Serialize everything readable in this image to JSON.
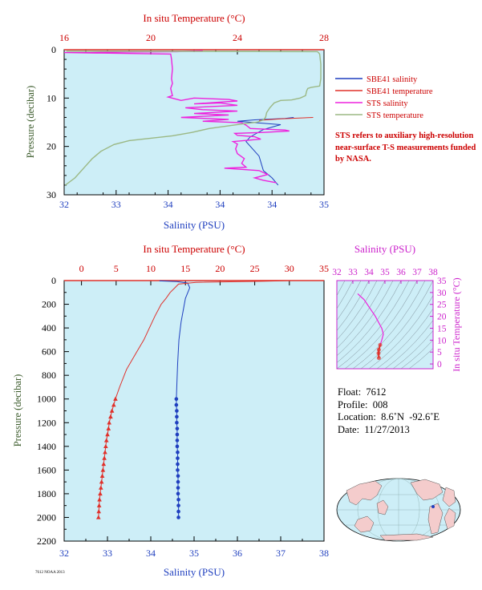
{
  "colors": {
    "plot_bg": "#cdeef7",
    "salinity": "#1f3fbf",
    "temperature": "#e0302a",
    "sts_salinity": "#ee22dd",
    "sts_temperature": "#9bb884",
    "ts_axis": "#cc22cc",
    "y_label": "#3a5a2a"
  },
  "chart_data": [
    {
      "type": "line",
      "panel": "near-surface",
      "xlabel_bottom": "Salinity (PSU)",
      "xlabel_top": "In situ Temperature (°C)",
      "ylabel": "Pressure (decibar)",
      "salinity_lim": [
        32,
        35
      ],
      "salinity_ticks": [
        "32",
        "33",
        "34",
        "34",
        "34",
        "35"
      ],
      "temperature_lim": [
        16,
        28
      ],
      "temperature_ticks": [
        "16",
        "20",
        "24",
        "28"
      ],
      "pressure_lim": [
        0,
        30
      ],
      "pressure_ticks": [
        "0",
        "10",
        "20",
        "30"
      ],
      "legend": [
        {
          "label": "SBE41 salinity",
          "color": "#1f3fbf"
        },
        {
          "label": "SBE41 temperature",
          "color": "#e0302a"
        },
        {
          "label": "STS salinity",
          "color": "#ee22dd"
        },
        {
          "label": "STS temperature",
          "color": "#9bb884"
        }
      ],
      "series": [
        {
          "name": "SBE41 salinity",
          "axis": "salinity",
          "points": [
            [
              34.65,
              14.0
            ],
            [
              34.55,
              14.2
            ],
            [
              34.2,
              14.5
            ],
            [
              34.0,
              14.8
            ],
            [
              34.5,
              15.5
            ],
            [
              34.3,
              16.5
            ],
            [
              34.15,
              18.0
            ],
            [
              34.1,
              19.0
            ],
            [
              34.25,
              22.0
            ],
            [
              34.3,
              25.0
            ],
            [
              34.4,
              26.5
            ],
            [
              34.47,
              28.0
            ]
          ]
        },
        {
          "name": "SBE41 temperature",
          "axis": "temperature",
          "points": [
            [
              27.5,
              14.0
            ],
            [
              26.0,
              14.3
            ],
            [
              25.0,
              14.6
            ]
          ]
        },
        {
          "name": "STS salinity",
          "axis": "salinity",
          "points": [
            [
              33.6,
              0.2
            ],
            [
              33.3,
              0.4
            ],
            [
              32.55,
              0.5
            ],
            [
              32.3,
              0.6
            ],
            [
              32.0,
              0.6
            ],
            [
              33.23,
              0.9
            ],
            [
              33.24,
              2
            ],
            [
              33.25,
              4
            ],
            [
              33.24,
              6
            ],
            [
              33.25,
              7
            ],
            [
              33.23,
              8
            ],
            [
              33.25,
              9.5
            ],
            [
              33.2,
              9.8
            ],
            [
              33.35,
              10.5
            ],
            [
              33.5,
              10.0
            ],
            [
              33.9,
              10.3
            ],
            [
              34.0,
              10.6
            ],
            [
              33.5,
              11.2
            ],
            [
              33.8,
              11.0
            ],
            [
              34.0,
              11.5
            ],
            [
              33.4,
              12.0
            ],
            [
              33.6,
              12.4
            ],
            [
              34.0,
              12.7
            ],
            [
              33.5,
              13.2
            ],
            [
              33.9,
              13.5
            ],
            [
              33.35,
              14.0
            ],
            [
              33.9,
              14.4
            ],
            [
              33.6,
              14.8
            ],
            [
              34.05,
              15.1
            ],
            [
              34.1,
              15.6
            ],
            [
              34.15,
              16.3
            ],
            [
              34.55,
              16.6
            ],
            [
              34.6,
              16.8
            ],
            [
              34.3,
              17.1
            ],
            [
              33.97,
              17.3
            ],
            [
              34.0,
              17.7
            ],
            [
              34.2,
              18.0
            ],
            [
              34.27,
              18.5
            ],
            [
              33.95,
              19.0
            ],
            [
              34.0,
              19.5
            ],
            [
              33.98,
              20.5
            ],
            [
              34.0,
              21.5
            ],
            [
              34.08,
              22.5
            ],
            [
              34.05,
              23.5
            ],
            [
              34.1,
              24.3
            ],
            [
              33.85,
              24.5
            ],
            [
              34.25,
              25.0
            ],
            [
              34.35,
              25.8
            ],
            [
              34.2,
              26.5
            ],
            [
              34.3,
              27.0
            ],
            [
              34.45,
              27.5
            ]
          ]
        },
        {
          "name": "STS temperature",
          "axis": "temperature",
          "points": [
            [
              16.1,
              0.3
            ],
            [
              27.7,
              0.4
            ],
            [
              27.8,
              0.9
            ],
            [
              27.85,
              3
            ],
            [
              27.85,
              6
            ],
            [
              27.8,
              7.5
            ],
            [
              27.4,
              7.8
            ],
            [
              27.25,
              8.0
            ],
            [
              27.2,
              8.5
            ],
            [
              27.15,
              9.5
            ],
            [
              26.9,
              10.0
            ],
            [
              26.5,
              10.4
            ],
            [
              26.0,
              10.5
            ],
            [
              25.7,
              11.0
            ],
            [
              25.5,
              12.0
            ],
            [
              25.35,
              13.0
            ],
            [
              25.3,
              14.0
            ],
            [
              25.2,
              14.5
            ],
            [
              24.9,
              15.0
            ],
            [
              24.3,
              15.3
            ],
            [
              23.5,
              15.8
            ],
            [
              22.7,
              16.3
            ],
            [
              21.9,
              17.1
            ],
            [
              21.0,
              17.8
            ],
            [
              20.0,
              18.3
            ],
            [
              19.0,
              18.8
            ],
            [
              18.3,
              19.6
            ],
            [
              17.7,
              21.0
            ],
            [
              17.3,
              22.5
            ],
            [
              16.9,
              24.5
            ],
            [
              16.5,
              26.5
            ],
            [
              16.05,
              28.0
            ]
          ]
        }
      ]
    },
    {
      "type": "line",
      "panel": "full-profile",
      "xlabel_bottom": "Salinity (PSU)",
      "xlabel_top": "In situ Temperature (°C)",
      "ylabel": "Pressure (decibar)",
      "salinity_lim": [
        32,
        38
      ],
      "salinity_ticks": [
        "32",
        "33",
        "34",
        "35",
        "36",
        "37",
        "38"
      ],
      "temperature_lim": [
        -2.5,
        35
      ],
      "temperature_ticks": [
        "0",
        "5",
        "10",
        "15",
        "20",
        "25",
        "30",
        "35"
      ],
      "pressure_lim": [
        0,
        2200
      ],
      "pressure_ticks": [
        "0",
        "200",
        "400",
        "600",
        "800",
        "1000",
        "1200",
        "1400",
        "1600",
        "1800",
        "2000",
        "2200"
      ],
      "series": [
        {
          "name": "Salinity",
          "axis": "salinity",
          "points": [
            [
              34.2,
              3
            ],
            [
              34.6,
              8
            ],
            [
              34.85,
              20
            ],
            [
              34.9,
              60
            ],
            [
              34.8,
              150
            ],
            [
              34.75,
              250
            ],
            [
              34.7,
              350
            ],
            [
              34.65,
              500
            ],
            [
              34.62,
              700
            ],
            [
              34.6,
              900
            ],
            [
              34.59,
              1000
            ]
          ]
        },
        {
          "name": "Salinity (discrete)",
          "axis": "salinity",
          "markers": "circle",
          "points": [
            [
              34.59,
              1000
            ],
            [
              34.59,
              1050
            ],
            [
              34.6,
              1100
            ],
            [
              34.6,
              1150
            ],
            [
              34.6,
              1200
            ],
            [
              34.61,
              1250
            ],
            [
              34.61,
              1300
            ],
            [
              34.61,
              1350
            ],
            [
              34.61,
              1400
            ],
            [
              34.62,
              1450
            ],
            [
              34.62,
              1500
            ],
            [
              34.62,
              1550
            ],
            [
              34.62,
              1600
            ],
            [
              34.63,
              1650
            ],
            [
              34.63,
              1700
            ],
            [
              34.63,
              1750
            ],
            [
              34.63,
              1800
            ],
            [
              34.64,
              1850
            ],
            [
              34.64,
              1900
            ],
            [
              34.64,
              1950
            ],
            [
              34.64,
              2000
            ]
          ]
        },
        {
          "name": "Temperature",
          "axis": "temperature",
          "points": [
            [
              30.0,
              0
            ],
            [
              28.5,
              3
            ],
            [
              26.0,
              6
            ],
            [
              16.5,
              15
            ],
            [
              14.0,
              30
            ],
            [
              13.5,
              60
            ],
            [
              12.8,
              100
            ],
            [
              12.2,
              150
            ],
            [
              11.5,
              200
            ],
            [
              10.6,
              300
            ],
            [
              9.8,
              400
            ],
            [
              9.0,
              500
            ],
            [
              8.0,
              600
            ],
            [
              6.5,
              750
            ],
            [
              5.5,
              900
            ],
            [
              4.9,
              1000
            ]
          ]
        },
        {
          "name": "Temperature (discrete)",
          "axis": "temperature",
          "markers": "triangle",
          "points": [
            [
              4.9,
              1000
            ],
            [
              4.65,
              1050
            ],
            [
              4.4,
              1100
            ],
            [
              4.2,
              1150
            ],
            [
              4.0,
              1200
            ],
            [
              3.9,
              1250
            ],
            [
              3.75,
              1300
            ],
            [
              3.6,
              1350
            ],
            [
              3.5,
              1400
            ],
            [
              3.4,
              1450
            ],
            [
              3.3,
              1500
            ],
            [
              3.2,
              1550
            ],
            [
              3.1,
              1600
            ],
            [
              3.0,
              1650
            ],
            [
              2.9,
              1700
            ],
            [
              2.8,
              1750
            ],
            [
              2.7,
              1800
            ],
            [
              2.6,
              1850
            ],
            [
              2.55,
              1900
            ],
            [
              2.5,
              1950
            ],
            [
              2.45,
              2000
            ]
          ]
        }
      ]
    },
    {
      "type": "scatter",
      "panel": "t-s-diagram",
      "xlabel_top": "Salinity (PSU)",
      "ylabel_right": "In situ Temperature (°C)",
      "salinity_lim": [
        32,
        38
      ],
      "salinity_ticks": [
        "32",
        "33",
        "34",
        "35",
        "36",
        "37",
        "38"
      ],
      "temperature_lim": [
        -2,
        35
      ],
      "temperature_ticks": [
        "0",
        "5",
        "10",
        "15",
        "20",
        "25",
        "30",
        "35"
      ],
      "series": [
        {
          "name": "T-S profile",
          "points": [
            [
              33.3,
              29.5
            ],
            [
              33.7,
              27
            ],
            [
              34.0,
              24
            ],
            [
              34.4,
              20
            ],
            [
              34.8,
              15
            ],
            [
              34.9,
              12.5
            ],
            [
              34.8,
              10
            ],
            [
              34.7,
              8
            ],
            [
              34.62,
              6
            ],
            [
              34.6,
              4.5
            ],
            [
              34.62,
              2.5
            ]
          ]
        }
      ]
    }
  ],
  "note": "STS refers to auxiliary high-resolution near-surface T-S measurements funded by NASA.",
  "float_info": {
    "float": "Float:  7612",
    "profile": "Profile:  008",
    "location": "Location:  8.6˚N  -92.6˚E",
    "date": "Date:  11/27/2013"
  },
  "footer_text": "7612 NOAA 2013"
}
